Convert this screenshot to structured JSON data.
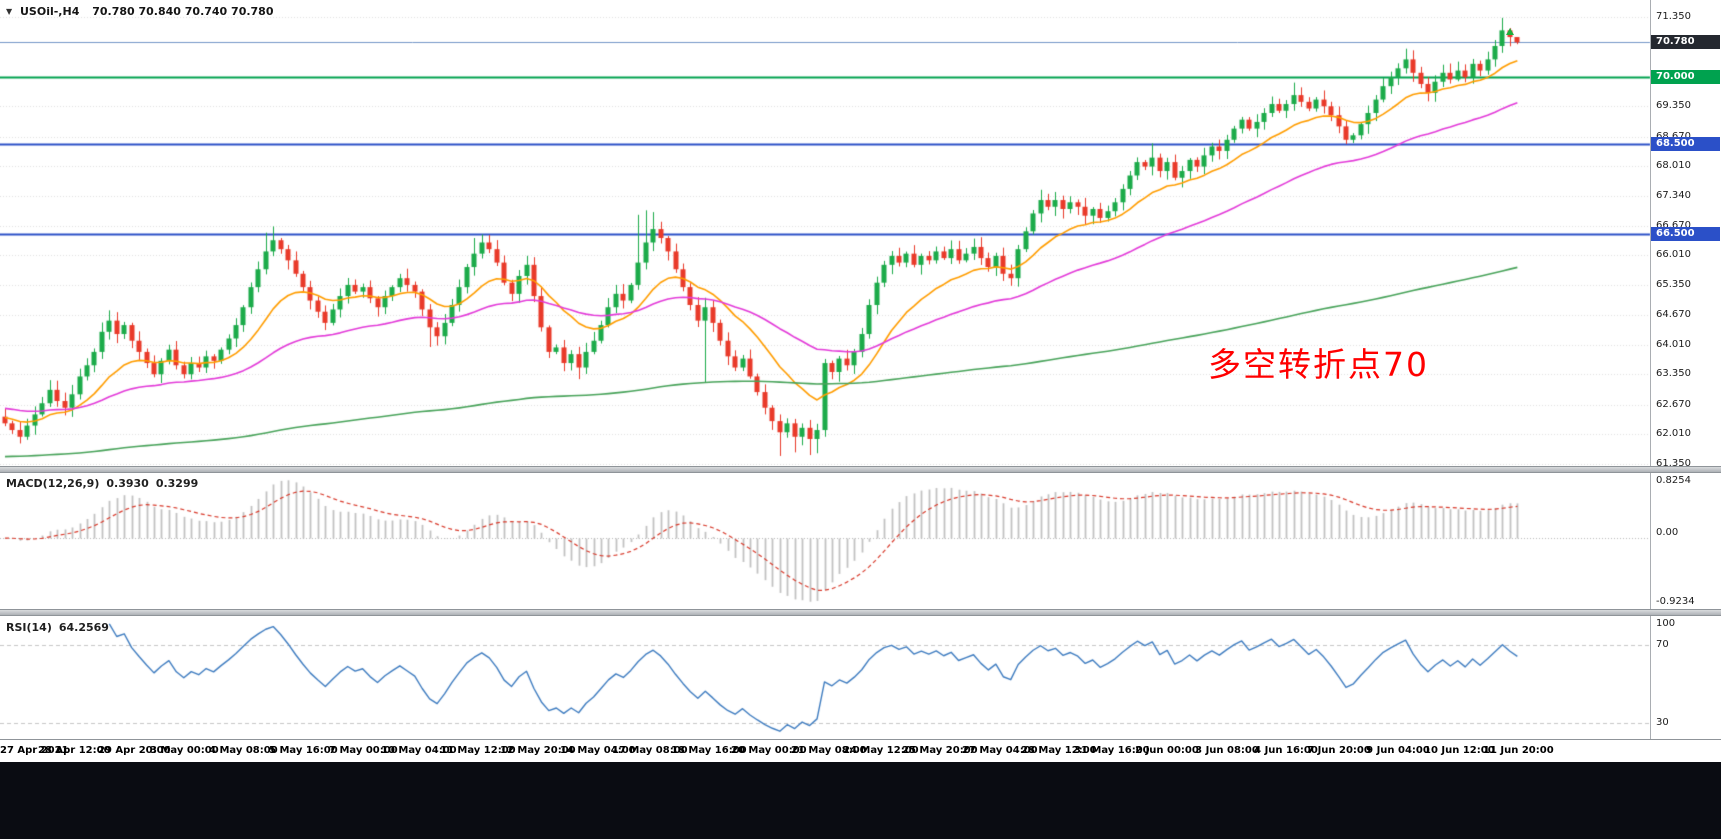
{
  "header": {
    "collapse_icon": "▼",
    "symbol": "USOil-,H4",
    "ohlc": "70.780 70.840 70.740 70.780"
  },
  "annotation": {
    "text": "多空转折点70",
    "color": "#ff0000"
  },
  "colors": {
    "candle_up": "#1cab4a",
    "candle_down": "#e93a2a",
    "grid": "#e0e0e0",
    "zero_line": "#b8b8b8",
    "scale_text": "#1c1c1c",
    "separator": "#b9bdc2",
    "bottom_bar": "#0a0c12"
  },
  "price_scale": {
    "ticks": [
      "71.350",
      "69.350",
      "68.670",
      "68.010",
      "67.340",
      "66.670",
      "66.010",
      "65.350",
      "64.670",
      "64.010",
      "63.350",
      "62.670",
      "62.010",
      "61.350"
    ]
  },
  "chart_data": [
    {
      "type": "candlestick",
      "symbol": "USOil-,H4",
      "timeframe": "H4",
      "ylim": [
        61.25,
        71.73
      ],
      "first_open": 62.4,
      "closes": [
        62.25,
        62.1,
        61.95,
        62.2,
        62.45,
        62.7,
        63.0,
        62.75,
        62.6,
        62.9,
        63.3,
        63.55,
        63.85,
        64.3,
        64.55,
        64.25,
        64.45,
        64.1,
        63.85,
        63.6,
        63.35,
        63.65,
        63.9,
        63.55,
        63.35,
        63.6,
        63.5,
        63.75,
        63.65,
        63.9,
        64.15,
        64.45,
        64.85,
        65.3,
        65.7,
        66.1,
        66.35,
        66.15,
        65.9,
        65.6,
        65.3,
        65.0,
        64.75,
        64.5,
        64.8,
        65.1,
        65.35,
        65.2,
        65.3,
        65.05,
        64.85,
        65.1,
        65.3,
        65.5,
        65.35,
        65.2,
        64.8,
        64.4,
        64.2,
        64.5,
        64.9,
        65.3,
        65.75,
        66.05,
        66.3,
        66.15,
        65.85,
        65.4,
        65.15,
        65.55,
        65.8,
        65.1,
        64.4,
        63.85,
        63.95,
        63.6,
        63.8,
        63.5,
        63.85,
        64.1,
        64.45,
        64.85,
        65.15,
        65.0,
        65.35,
        65.85,
        66.3,
        66.6,
        66.4,
        66.1,
        65.7,
        65.3,
        64.9,
        64.55,
        64.85,
        64.5,
        64.1,
        63.75,
        63.5,
        63.7,
        63.3,
        62.95,
        62.6,
        62.3,
        62.05,
        62.25,
        61.95,
        62.15,
        61.9,
        62.1,
        63.6,
        63.4,
        63.7,
        63.55,
        63.85,
        64.25,
        64.9,
        65.4,
        65.8,
        66.0,
        65.85,
        66.05,
        65.8,
        66.0,
        65.9,
        66.1,
        65.95,
        66.15,
        65.9,
        66.05,
        66.2,
        65.95,
        65.75,
        66.0,
        65.6,
        65.5,
        66.15,
        66.55,
        66.95,
        67.25,
        67.1,
        67.25,
        67.05,
        67.2,
        67.1,
        66.9,
        67.05,
        66.85,
        67.0,
        67.2,
        67.5,
        67.8,
        68.1,
        68.0,
        68.2,
        67.9,
        68.1,
        67.75,
        67.9,
        68.15,
        68.0,
        68.25,
        68.45,
        68.35,
        68.6,
        68.85,
        69.05,
        68.85,
        69.0,
        69.2,
        69.4,
        69.25,
        69.4,
        69.6,
        69.45,
        69.3,
        69.5,
        69.35,
        69.15,
        68.9,
        68.6,
        68.7,
        68.95,
        69.2,
        69.5,
        69.8,
        70.0,
        70.2,
        70.4,
        70.1,
        69.85,
        69.65,
        69.9,
        70.1,
        69.95,
        70.15,
        70.0,
        70.3,
        70.15,
        70.4,
        70.7,
        71.05,
        70.9,
        70.78
      ],
      "wick_overrides": {
        "2": [
          null,
          61.8
        ],
        "14": [
          64.78,
          null
        ],
        "35": [
          66.52,
          null
        ],
        "36": [
          66.66,
          null
        ],
        "57": [
          null,
          63.96
        ],
        "63": [
          66.4,
          null
        ],
        "64": [
          66.48,
          null
        ],
        "77": [
          null,
          63.24
        ],
        "85": [
          66.92,
          null
        ],
        "86": [
          67.02,
          null
        ],
        "87": [
          66.98,
          null
        ],
        "94": [
          null,
          63.16
        ],
        "104": [
          null,
          61.52
        ],
        "106": [
          null,
          61.6
        ],
        "108": [
          null,
          61.54
        ],
        "109": [
          null,
          61.58
        ],
        "110": [
          null,
          61.95
        ],
        "139": [
          67.48,
          null
        ],
        "154": [
          68.52,
          null
        ],
        "173": [
          69.88,
          null
        ],
        "188": [
          70.64,
          null
        ],
        "191": [
          null,
          69.46
        ],
        "201": [
          71.33,
          null
        ],
        "202": [
          71.1,
          null
        ],
        "203": [
          70.84,
          70.74
        ]
      },
      "moving_averages": [
        {
          "name": "ma-fast",
          "period": 14,
          "seed": 62.4,
          "color": "#ff9d00"
        },
        {
          "name": "ma-mid",
          "period": 45,
          "seed": 62.6,
          "color": "#e33bd9"
        },
        {
          "name": "ma-slow",
          "period": 260,
          "seed": 61.5,
          "color": "#48a35a"
        }
      ],
      "hlines": [
        {
          "value": 70.0,
          "label": "70.000",
          "color": "#00a24f"
        },
        {
          "value": 68.5,
          "label": "68.500",
          "color": "#2b50c8"
        },
        {
          "value": 66.5,
          "label": "66.500",
          "color": "#2b50c8"
        }
      ],
      "bid": {
        "value": 70.78,
        "label": "70.780",
        "line_color": "#7396c8",
        "box_bg": "#24282f"
      },
      "x_labels": [
        "27 Apr 2021",
        "28 Apr 12:00",
        "29 Apr 20:00",
        "3 May 00:00",
        "4 May 08:00",
        "5 May 16:00",
        "7 May 00:00",
        "10 May 04:00",
        "11 May 12:00",
        "12 May 20:00",
        "14 May 04:00",
        "17 May 08:00",
        "18 May 16:00",
        "20 May 00:00",
        "21 May 08:00",
        "24 May 12:00",
        "25 May 20:00",
        "27 May 04:00",
        "28 May 12:00",
        "31 May 16:00",
        "2 Jun 00:00",
        "3 Jun 08:00",
        "4 Jun 16:00",
        "7 Jun 20:00",
        "9 Jun 04:00",
        "10 Jun 12:00",
        "11 Jun 20:00"
      ],
      "label_bar_index": [
        0,
        9,
        17,
        24,
        32,
        40,
        48,
        55,
        63,
        71,
        79,
        86,
        94,
        102,
        110,
        117,
        125,
        133,
        141,
        148,
        156,
        164,
        172,
        179,
        187,
        195,
        203
      ]
    },
    {
      "type": "bar",
      "name": "MACD",
      "params": [
        12,
        26,
        9
      ],
      "label": "MACD(12,26,9)",
      "value_main": "0.3930",
      "value_signal": "0.3299",
      "scale_labels": [
        "0.8254",
        "0.00",
        "-0.9234"
      ],
      "histogram_color": "#c2c2c2",
      "signal_color": "#d93a2b"
    },
    {
      "type": "line",
      "name": "RSI",
      "params": [
        14
      ],
      "label": "RSI(14)",
      "value": "64.2569",
      "scale_labels": [
        "100",
        "70",
        "30"
      ],
      "levels": [
        70,
        30
      ],
      "line_color": "#3e7cc0",
      "level_color": "#c6c6c6"
    }
  ]
}
